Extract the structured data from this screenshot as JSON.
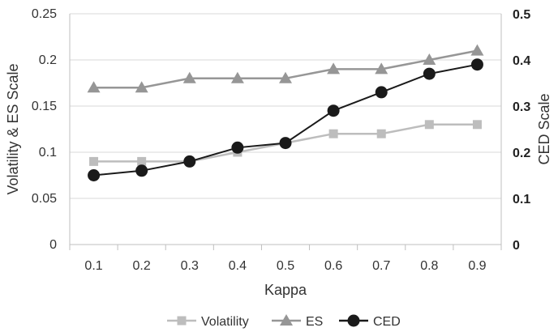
{
  "chart_data": {
    "type": "line",
    "xlabel": "Kappa",
    "ylabel_left": "Volatility & ES Scale",
    "ylabel_right": "CED Scale",
    "categories": [
      "0.1",
      "0.2",
      "0.3",
      "0.4",
      "0.5",
      "0.6",
      "0.7",
      "0.8",
      "0.9"
    ],
    "left_axis": {
      "ylim": [
        0,
        0.25
      ],
      "ticks": [
        "0",
        "0.05",
        "0.1",
        "0.15",
        "0.2",
        "0.25"
      ]
    },
    "right_axis": {
      "ylim": [
        0,
        0.5
      ],
      "ticks": [
        "0",
        "0.1",
        "0.2",
        "0.3",
        "0.4",
        "0.5"
      ]
    },
    "grid": true,
    "legend_position": "bottom",
    "series": [
      {
        "name": "Volatility",
        "axis": "left",
        "marker": "square",
        "color": "#bdbdbd",
        "values": [
          0.09,
          0.09,
          0.09,
          0.1,
          0.11,
          0.12,
          0.12,
          0.13,
          0.13
        ]
      },
      {
        "name": "ES",
        "axis": "left",
        "marker": "triangle",
        "color": "#969696",
        "values": [
          0.17,
          0.17,
          0.18,
          0.18,
          0.18,
          0.19,
          0.19,
          0.2,
          0.21
        ]
      },
      {
        "name": "CED",
        "axis": "right",
        "marker": "circle",
        "color": "#1a1a1a",
        "values": [
          0.15,
          0.16,
          0.18,
          0.21,
          0.22,
          0.29,
          0.33,
          0.37,
          0.39
        ]
      }
    ]
  }
}
